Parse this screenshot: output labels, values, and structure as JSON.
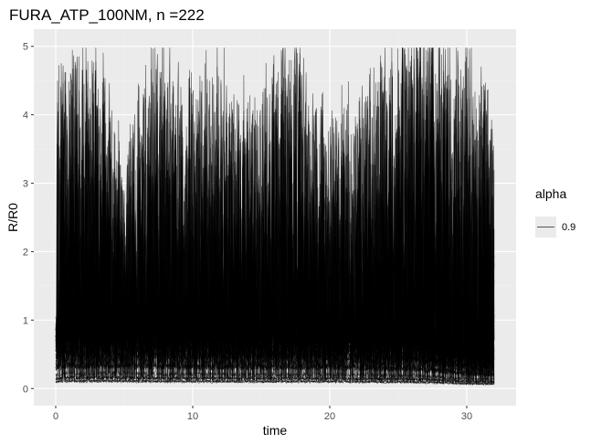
{
  "chart_data": {
    "type": "line",
    "title": "FURA_ATP_100NM, n =222",
    "xlabel": "time",
    "ylabel": "R/R0",
    "xlim": [
      -1.6,
      33.6
    ],
    "ylim": [
      -0.25,
      5.25
    ],
    "x_ticks": [
      0,
      10,
      20,
      30
    ],
    "y_ticks": [
      0,
      1,
      2,
      3,
      4,
      5
    ],
    "grid": true,
    "legend": {
      "title": "alpha",
      "placement": "right",
      "entries": [
        {
          "label": "0.9"
        }
      ]
    },
    "series_count": 222,
    "x_range": [
      0,
      32
    ],
    "baseline_trend": [
      [
        0,
        0.9
      ],
      [
        1,
        1.0
      ],
      [
        2,
        0.95
      ],
      [
        4,
        1.0
      ],
      [
        6,
        0.95
      ],
      [
        10,
        0.93
      ],
      [
        14,
        0.92
      ],
      [
        18,
        0.92
      ],
      [
        22,
        0.9
      ],
      [
        24,
        0.85
      ],
      [
        26,
        0.85
      ],
      [
        28,
        0.75
      ],
      [
        30,
        0.62
      ],
      [
        32,
        0.58
      ]
    ],
    "peak_envelope": [
      [
        0,
        3.6
      ],
      [
        1,
        4.6
      ],
      [
        3,
        4.4
      ],
      [
        5,
        2.6
      ],
      [
        7,
        4.5
      ],
      [
        9,
        3.9
      ],
      [
        12,
        4.1
      ],
      [
        15,
        3.5
      ],
      [
        16.5,
        4.7
      ],
      [
        18,
        4.3
      ],
      [
        20,
        3.2
      ],
      [
        23,
        4.0
      ],
      [
        25,
        4.95
      ],
      [
        27,
        4.9
      ],
      [
        29,
        4.7
      ],
      [
        31,
        4.6
      ],
      [
        32,
        3.7
      ]
    ],
    "colors": {
      "panel_background": "#ebebeb",
      "grid_major": "#ffffff",
      "grid_minor": "#f2f2f2",
      "line": "#000000",
      "legend_key_background": "#ebebeb"
    }
  }
}
